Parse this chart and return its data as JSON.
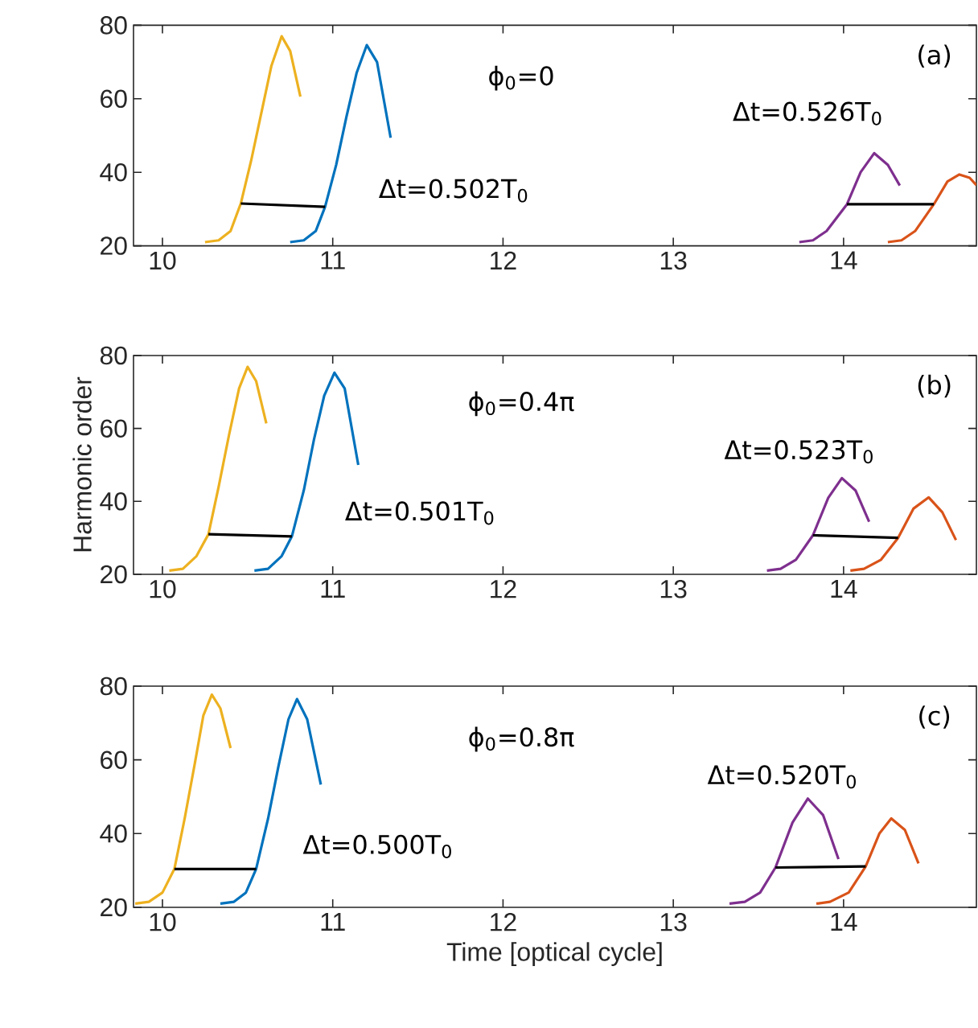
{
  "chart_data": [
    {
      "type": "line",
      "xlim": [
        9.83,
        14.78
      ],
      "ylim": [
        20,
        80
      ],
      "xticks": [
        10,
        11,
        12,
        13,
        14
      ],
      "yticks": [
        20,
        40,
        60,
        80
      ],
      "series": [
        {
          "color": "#edb120",
          "x": [
            10.25,
            10.33,
            10.4,
            10.46,
            10.52,
            10.58,
            10.64,
            10.7,
            10.75,
            10.81
          ],
          "values": [
            21,
            21.5,
            24,
            31.5,
            43,
            56,
            69,
            77,
            73,
            60.6
          ]
        },
        {
          "color": "#0072bd",
          "x": [
            10.75,
            10.83,
            10.9,
            10.955,
            11.02,
            11.08,
            11.14,
            11.2,
            11.26,
            11.34
          ],
          "values": [
            21,
            21.5,
            24,
            30.6,
            42,
            55,
            67,
            74.6,
            70,
            49.4
          ]
        },
        {
          "color": "#7e2f8e",
          "x": [
            13.74,
            13.82,
            13.9,
            14.02,
            14.1,
            14.18,
            14.26,
            14.33
          ],
          "values": [
            21,
            21.5,
            24,
            31.3,
            40,
            45.2,
            42,
            36.4
          ]
        },
        {
          "color": "#d95319",
          "x": [
            14.26,
            14.34,
            14.42,
            14.53,
            14.61,
            14.68,
            14.74,
            14.78
          ],
          "values": [
            21,
            21.5,
            24,
            31.3,
            37.5,
            39.4,
            38.5,
            36.5
          ]
        },
        {
          "color": "#000000",
          "x": [
            10.46,
            10.955
          ],
          "values": [
            31.5,
            30.6
          ]
        },
        {
          "color": "#000000",
          "x": [
            14.02,
            14.53
          ],
          "values": [
            31.3,
            31.3
          ]
        }
      ],
      "annotations": [
        "ϕ$_{0}$=0",
        "(a)",
        "Δt=0.502T$_{0}$",
        "Δt=0.526T$_{0}$"
      ]
    },
    {
      "type": "line",
      "xlim": [
        9.83,
        14.78
      ],
      "ylim": [
        20,
        80
      ],
      "xticks": [
        10,
        11,
        12,
        13,
        14
      ],
      "yticks": [
        20,
        40,
        60,
        80
      ],
      "ylabel": "Harmonic order",
      "series": [
        {
          "color": "#edb120",
          "x": [
            10.04,
            10.12,
            10.2,
            10.27,
            10.33,
            10.39,
            10.45,
            10.5,
            10.55,
            10.61
          ],
          "values": [
            21,
            21.5,
            25,
            31,
            44,
            58,
            71,
            76.9,
            73,
            61.4
          ]
        },
        {
          "color": "#0072bd",
          "x": [
            10.54,
            10.62,
            10.7,
            10.76,
            10.83,
            10.89,
            10.95,
            11.01,
            11.07,
            11.15
          ],
          "values": [
            21,
            21.5,
            25,
            30.4,
            43,
            57,
            69,
            75.3,
            71,
            50
          ]
        },
        {
          "color": "#7e2f8e",
          "x": [
            13.55,
            13.63,
            13.72,
            13.82,
            13.91,
            13.99,
            14.07,
            14.15
          ],
          "values": [
            21,
            21.5,
            24,
            30.7,
            41,
            46.4,
            43,
            34.4
          ]
        },
        {
          "color": "#d95319",
          "x": [
            14.04,
            14.12,
            14.22,
            14.32,
            14.41,
            14.5,
            14.58,
            14.66
          ],
          "values": [
            21,
            21.5,
            24,
            30,
            38,
            41.1,
            37,
            29.4
          ]
        },
        {
          "color": "#000000",
          "x": [
            10.27,
            10.76
          ],
          "values": [
            31,
            30.4
          ]
        },
        {
          "color": "#000000",
          "x": [
            13.82,
            14.32
          ],
          "values": [
            30.7,
            30
          ]
        }
      ],
      "annotations": [
        "ϕ$_{0}$=0.4π",
        "(b)",
        "Δt=0.501T$_{0}$",
        "Δt=0.523T$_{0}$"
      ]
    },
    {
      "type": "line",
      "xlim": [
        9.83,
        14.78
      ],
      "ylim": [
        20,
        80
      ],
      "xticks": [
        10,
        11,
        12,
        13,
        14
      ],
      "yticks": [
        20,
        40,
        60,
        80
      ],
      "xlabel": "Time [optical cycle]",
      "series": [
        {
          "color": "#edb120",
          "x": [
            9.84,
            9.92,
            10.0,
            10.07,
            10.13,
            10.19,
            10.24,
            10.29,
            10.34,
            10.4
          ],
          "values": [
            21,
            21.5,
            24,
            30.4,
            44,
            59,
            72,
            77.7,
            74,
            63.2
          ]
        },
        {
          "color": "#0072bd",
          "x": [
            10.34,
            10.42,
            10.49,
            10.55,
            10.62,
            10.68,
            10.74,
            10.79,
            10.85,
            10.93
          ],
          "values": [
            21,
            21.5,
            24,
            30.4,
            44,
            58,
            71,
            76.5,
            71,
            53.3
          ]
        },
        {
          "color": "#7e2f8e",
          "x": [
            13.33,
            13.42,
            13.51,
            13.6,
            13.7,
            13.79,
            13.88,
            13.97
          ],
          "values": [
            21,
            21.5,
            24,
            30.8,
            43,
            49.5,
            45,
            33.1
          ]
        },
        {
          "color": "#d95319",
          "x": [
            13.84,
            13.92,
            14.03,
            14.13,
            14.21,
            14.28,
            14.36,
            14.44
          ],
          "values": [
            21,
            21.5,
            24,
            31.1,
            40,
            44.1,
            41,
            31.9
          ]
        },
        {
          "color": "#000000",
          "x": [
            10.07,
            10.55
          ],
          "values": [
            30.4,
            30.4
          ]
        },
        {
          "color": "#000000",
          "x": [
            13.6,
            14.13
          ],
          "values": [
            30.8,
            31.1
          ]
        }
      ],
      "annotations": [
        "ϕ$_{0}$=0.8π",
        "(c)",
        "Δt=0.500T$_{0}$",
        "Δt=0.520T$_{0}$"
      ]
    }
  ]
}
